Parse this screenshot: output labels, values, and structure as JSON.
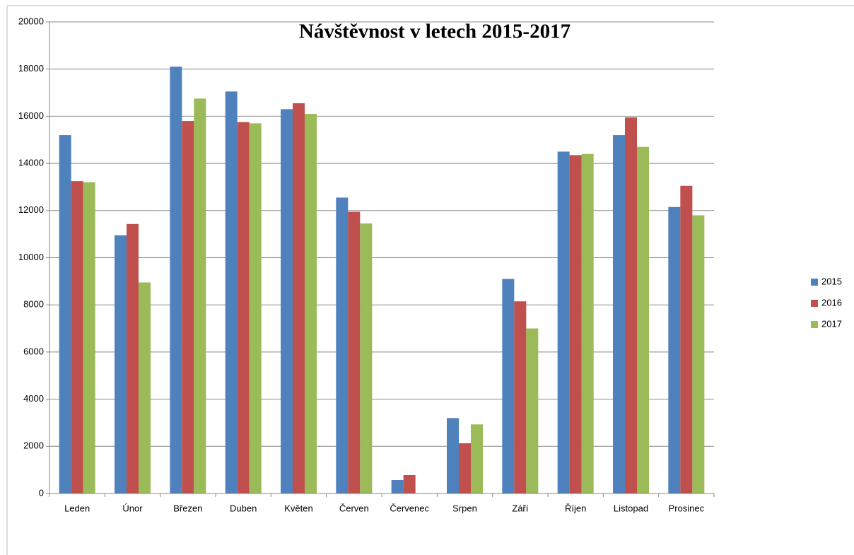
{
  "chart_data": {
    "type": "bar",
    "title": "Návštěvnost v letech 2015-2017",
    "categories": [
      "Leden",
      "Únor",
      "Březen",
      "Duben",
      "Květen",
      "Červen",
      "Červenec",
      "Srpen",
      "Září",
      "Říjen",
      "Listopad",
      "Prosinec"
    ],
    "series": [
      {
        "name": "2015",
        "color": "#4f81bd",
        "values": [
          15200,
          10950,
          18100,
          17050,
          16300,
          12550,
          570,
          3200,
          9100,
          14500,
          15200,
          12150
        ]
      },
      {
        "name": "2016",
        "color": "#c0504d",
        "values": [
          13250,
          11430,
          15800,
          15750,
          16550,
          11950,
          780,
          2130,
          8150,
          14350,
          15950,
          13050
        ]
      },
      {
        "name": "2017",
        "color": "#9bbb59",
        "values": [
          13200,
          8950,
          16750,
          15700,
          16100,
          11450,
          null,
          2930,
          7000,
          14400,
          14700,
          11800
        ]
      }
    ],
    "ylim": [
      0,
      20000
    ],
    "yticks": [
      0,
      2000,
      4000,
      6000,
      8000,
      10000,
      12000,
      14000,
      16000,
      18000,
      20000
    ],
    "grid": true,
    "legend": "right"
  }
}
